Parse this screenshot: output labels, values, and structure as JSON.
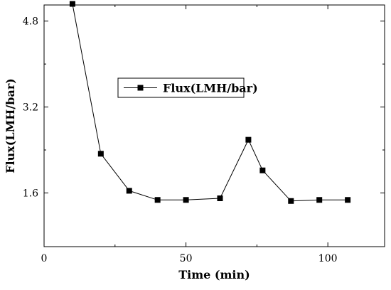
{
  "chart_data": {
    "type": "line",
    "xlabel": "Time (min)",
    "ylabel": "Flux(LMH/bar)",
    "xlim": [
      0,
      120
    ],
    "ylim": [
      0.6,
      5.1
    ],
    "x_ticks": [
      0,
      50,
      100
    ],
    "y_ticks": [
      1.6,
      3.2,
      4.8
    ],
    "x_tick_labels": [
      "0",
      "50",
      "100"
    ],
    "y_tick_labels": [
      "1.6",
      "3.2",
      "4.8"
    ],
    "grid": false,
    "legend_position": "upper-middle",
    "series": [
      {
        "name": "Flux(LMH/bar)",
        "marker": "square",
        "color": "#000000",
        "x": [
          10,
          20,
          30,
          40,
          50,
          62,
          72,
          77,
          87,
          97,
          107
        ],
        "y": [
          5.12,
          2.33,
          1.64,
          1.47,
          1.47,
          1.5,
          2.59,
          2.02,
          1.45,
          1.47,
          1.47
        ]
      }
    ]
  }
}
